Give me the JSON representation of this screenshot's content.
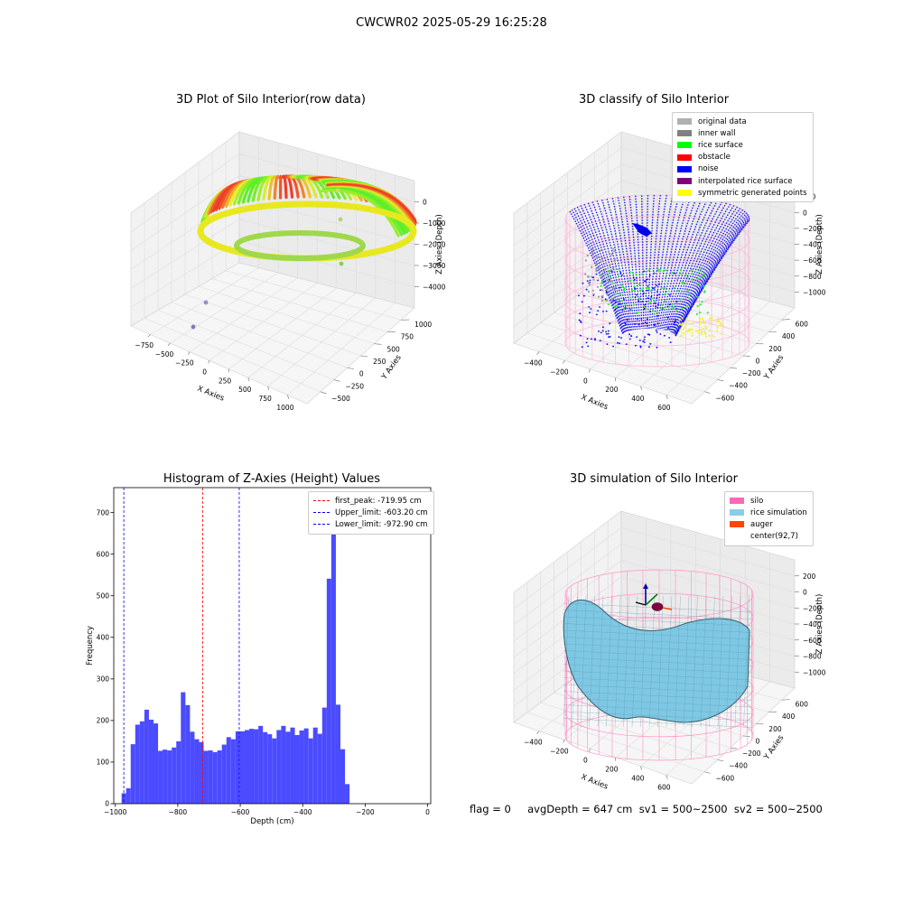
{
  "figure": {
    "suptitle": "CWCWR02 2025-05-29 16:25:28",
    "footer": "flag = 0     avgDepth = 647 cm  sv1 = 500~2500  sv2 = 500~2500"
  },
  "colors": {
    "histogram_bar": "#4b4bff",
    "first_peak_line": "#ff0000",
    "limit_line": "#0000ff",
    "silo_wire": "#ff8fc4",
    "rice_surface": "#7ec8e3",
    "noise": "#0000ff"
  },
  "chart_data": [
    {
      "type": "scatter",
      "title": "3D Plot of Silo Interior(row data)",
      "xlabel": "X Axies",
      "ylabel": "Y Axies",
      "zlabel": "Z Axies (Depth)",
      "xticks": [
        "−750",
        "−500",
        "−250",
        "0",
        "250",
        "500",
        "750",
        "1000"
      ],
      "yticks": [
        "−500",
        "−250",
        "0",
        "250",
        "500",
        "750",
        "1000"
      ],
      "zticks": [
        "0",
        "−1000",
        "−2000",
        "−3000",
        "−4000"
      ],
      "colormap": "viridis"
    },
    {
      "type": "scatter",
      "title": "3D classify of Silo Interior",
      "xlabel": "X Axies",
      "ylabel": "Y Axies",
      "zlabel": "Z Axies (Depth)",
      "xticks": [
        "−400",
        "−200",
        "0",
        "200",
        "400",
        "600"
      ],
      "yticks": [
        "−600",
        "−400",
        "−200",
        "0",
        "200",
        "400",
        "600"
      ],
      "zticks": [
        "200",
        "0",
        "−200",
        "−400",
        "−600",
        "−800",
        "−1000"
      ],
      "legend": [
        {
          "label": "original data",
          "color": "#b0b0b0"
        },
        {
          "label": "inner wall",
          "color": "#808080"
        },
        {
          "label": "rice surface",
          "color": "#00ff00"
        },
        {
          "label": "obstacle",
          "color": "#ff0000"
        },
        {
          "label": "noise",
          "color": "#0000ff"
        },
        {
          "label": "interpolated rice surface",
          "color": "#800080"
        },
        {
          "label": "symmetric generated points",
          "color": "#ffff00"
        }
      ]
    },
    {
      "type": "bar",
      "title": "Histogram of Z-Axies (Height) Values",
      "xlabel": "Depth (cm)",
      "ylabel": "Frequency",
      "xlim": [
        -1005,
        10
      ],
      "ylim": [
        0,
        760
      ],
      "xticks": [
        -1000,
        -800,
        -600,
        -400,
        -200,
        0
      ],
      "yticks": [
        0,
        100,
        200,
        300,
        400,
        500,
        600,
        700
      ],
      "bin_start": -980,
      "bin_width": 14.6,
      "values": [
        25,
        37,
        143,
        190,
        198,
        226,
        202,
        193,
        127,
        130,
        128,
        135,
        150,
        268,
        237,
        173,
        155,
        148,
        127,
        128,
        124,
        128,
        142,
        160,
        155,
        174,
        174,
        177,
        180,
        179,
        187,
        172,
        167,
        157,
        177,
        187,
        173,
        183,
        165,
        176,
        181,
        157,
        183,
        168,
        231,
        541,
        722,
        238,
        131,
        47
      ],
      "vlines": [
        {
          "x": -719.95,
          "color": "#ff0000",
          "label": "first_peak: -719.95 cm"
        },
        {
          "x": -603.2,
          "color": "#0000ff",
          "label": "Upper_limit: -603.20 cm"
        },
        {
          "x": -972.9,
          "color": "#0000ff",
          "label": "Lower_limit: -972.90 cm"
        }
      ],
      "legend_loc": "upper right"
    },
    {
      "type": "area",
      "title": "3D simulation of Silo Interior",
      "xlabel": "X Axies",
      "ylabel": "Y Axies",
      "zlabel": "Z Axies (Depth)",
      "xticks": [
        "−400",
        "−200",
        "0",
        "200",
        "400",
        "600"
      ],
      "yticks": [
        "−600",
        "−400",
        "−200",
        "0",
        "200",
        "400",
        "600"
      ],
      "zticks": [
        "200",
        "0",
        "−200",
        "−400",
        "−600",
        "−800",
        "−1000"
      ],
      "legend": [
        {
          "label": "silo",
          "color": "#ff69b4"
        },
        {
          "label": "rice simulation",
          "color": "#87ceeb"
        },
        {
          "label": "auger",
          "color": "#ff4500"
        },
        {
          "label": "center(92,7)",
          "color": "#ffffff"
        }
      ]
    }
  ]
}
